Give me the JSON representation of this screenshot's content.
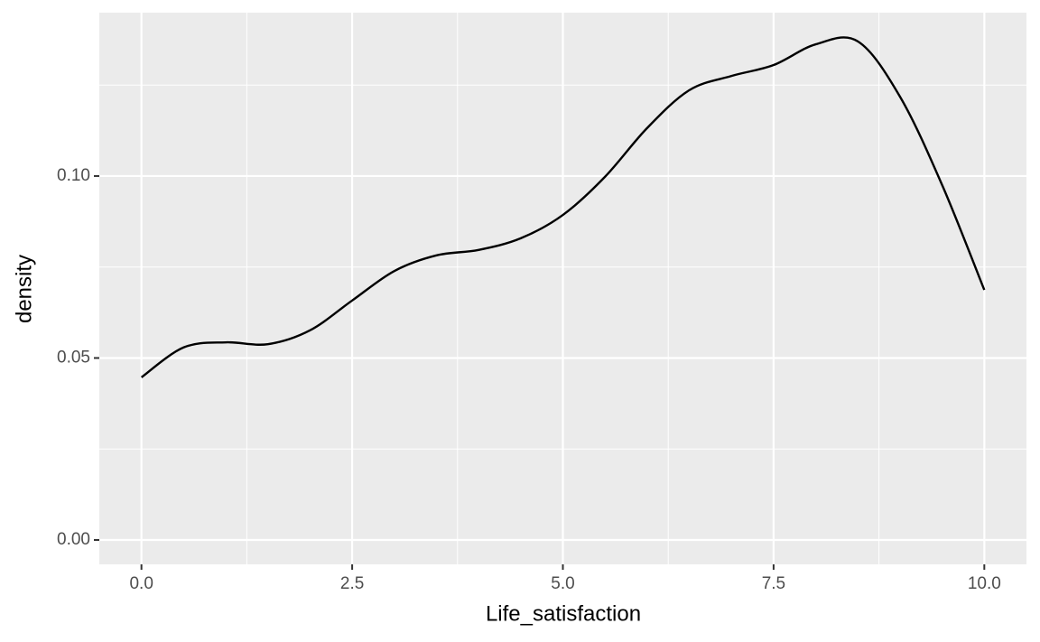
{
  "chart_data": {
    "type": "line",
    "x_label": "Life_satisfaction",
    "y_label": "density",
    "x": [
      0,
      0.5,
      1,
      1.5,
      2,
      2.5,
      3,
      3.5,
      4,
      4.5,
      5,
      5.5,
      6,
      6.5,
      7,
      7.5,
      8,
      8.5,
      9,
      9.5,
      10
    ],
    "series": [
      {
        "color": "#000000",
        "values": [
          0.0447,
          0.0529,
          0.0543,
          0.0538,
          0.0576,
          0.0658,
          0.0739,
          0.0782,
          0.0797,
          0.0829,
          0.0893,
          0.0998,
          0.1132,
          0.1236,
          0.1275,
          0.1305,
          0.1362,
          0.137,
          0.1218,
          0.0975,
          0.0687
        ]
      }
    ],
    "xlim": [
      -0.5,
      10.5
    ],
    "ylim": [
      -0.0067,
      0.1449
    ],
    "xticks": [
      {
        "value": 0,
        "label": "0.0"
      },
      2.5,
      {
        "value": 5,
        "label": "5.0"
      },
      7.5,
      {
        "value": 10,
        "label": "10.0"
      }
    ],
    "yticks": [
      {
        "value": 0,
        "label": "0.00"
      },
      {
        "value": 0.05,
        "label": "0.05"
      },
      {
        "value": 0.1,
        "label": "0.10"
      }
    ],
    "xminor_ticks": [
      1.25,
      3.75,
      6.25,
      8.75
    ],
    "yminor_ticks": [
      0.025,
      0.075,
      0.125
    ],
    "grid": true,
    "panel_color": "#ebebeb"
  }
}
